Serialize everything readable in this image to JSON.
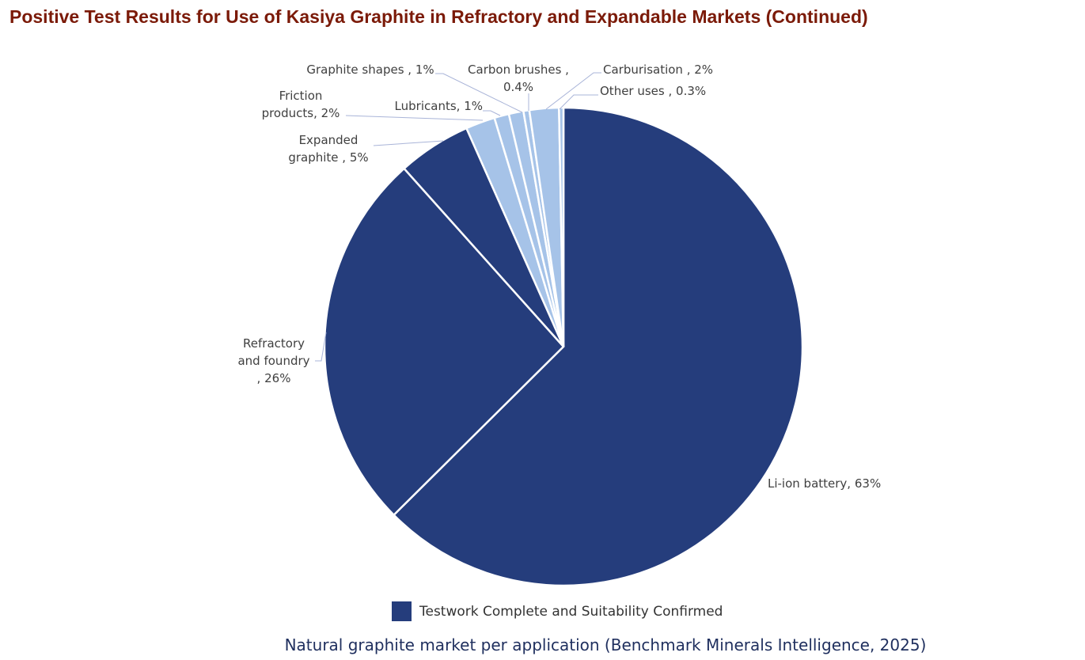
{
  "chart_data": {
    "type": "pie",
    "title": "Positive Test Results for Use of Kasiya Graphite in Refractory and Expandable Markets (Continued)",
    "categories": [
      "Li-ion battery,",
      "Refractory and foundry ,",
      "Expanded graphite ,",
      "Friction products,",
      "Lubricants,",
      "Graphite shapes ,",
      "Carbon brushes ,",
      "Carburisation ,",
      "Other uses ,"
    ],
    "values": [
      63,
      26,
      5,
      2,
      1,
      1,
      0.4,
      2,
      0.3
    ],
    "value_labels": [
      "63%",
      "26%",
      "5%",
      "2%",
      "1%",
      "1%",
      "0.4%",
      "2%",
      "0.3%"
    ],
    "colors": [
      "#253d7c",
      "#253d7c",
      "#253d7c",
      "#a6c3e8",
      "#a6c3e8",
      "#a6c3e8",
      "#a6c3e8",
      "#a6c3e8",
      "#a6c3e8"
    ],
    "legend": {
      "label": "Testwork Complete and Suitability Confirmed",
      "color": "#253d7c"
    },
    "caption": "Natural graphite market per application (Benchmark Minerals Intelligence, 2025)"
  }
}
